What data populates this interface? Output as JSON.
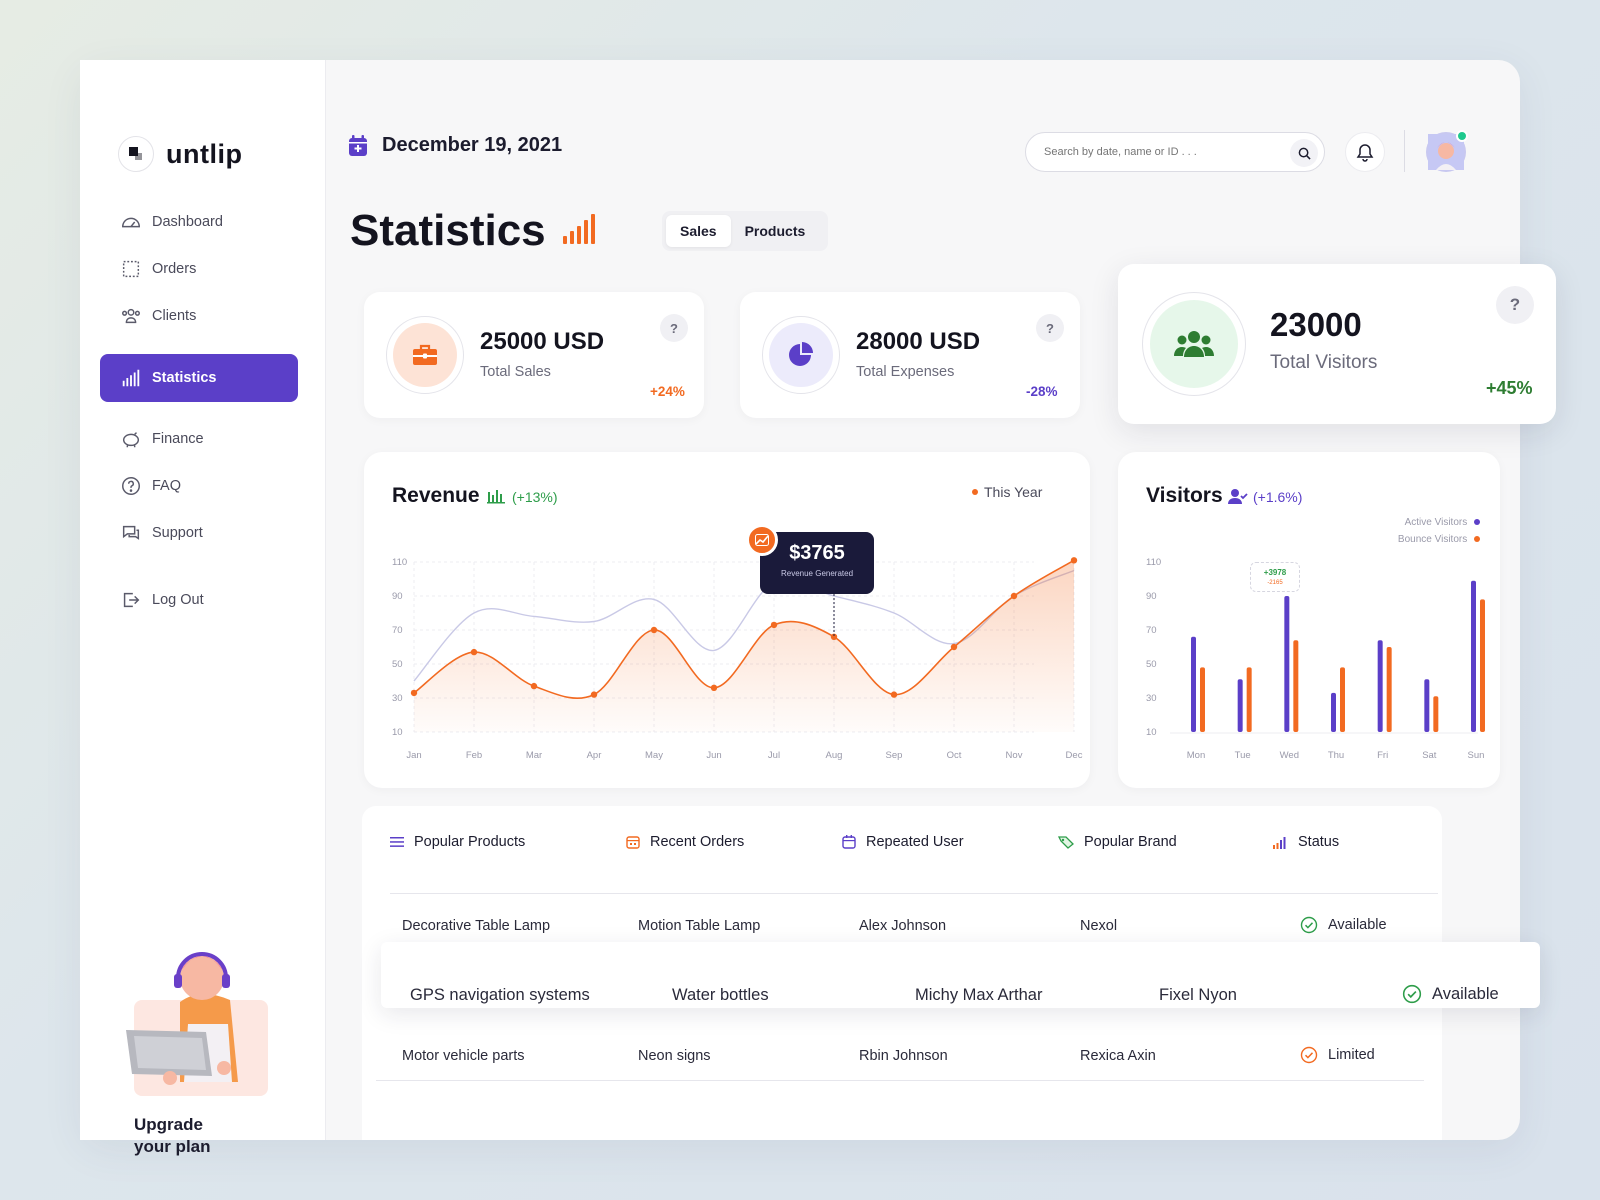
{
  "app": {
    "name": "untlip"
  },
  "sidebar": {
    "items": [
      {
        "label": "Dashboard"
      },
      {
        "label": "Orders"
      },
      {
        "label": "Clients"
      },
      {
        "label": "Statistics"
      },
      {
        "label": "Finance"
      },
      {
        "label": "FAQ"
      },
      {
        "label": "Support"
      },
      {
        "label": "Log Out"
      }
    ],
    "upgrade": "Upgrade\nyour plan"
  },
  "header": {
    "date": "December 19, 2021",
    "search_placeholder": "Search by date, name or ID . . ."
  },
  "page": {
    "title": "Statistics",
    "tabs": [
      {
        "label": "Sales"
      },
      {
        "label": "Products"
      }
    ]
  },
  "stats": [
    {
      "value": "25000 USD",
      "label": "Total Sales",
      "change": "+24%",
      "help": "?"
    },
    {
      "value": "28000 USD",
      "label": "Total Expenses",
      "change": "-28%",
      "help": "?"
    },
    {
      "value": "23000",
      "label": "Total Visitors",
      "change": "+45%",
      "help": "?"
    }
  ],
  "revenue": {
    "title": "Revenue",
    "change": "(+13%)",
    "legend": "This Year",
    "tooltip_value": "$3765",
    "tooltip_label": "Revenue Generated"
  },
  "visitors": {
    "title": "Visitors",
    "change": "(+1.6%)",
    "legend_active": "Active Visitors",
    "legend_bounce": "Bounce Visitors",
    "badge_top": "+3978",
    "badge_bottom": "-2165"
  },
  "chart_data": [
    {
      "type": "area",
      "title": "Revenue",
      "categories": [
        "Jan",
        "Feb",
        "Mar",
        "Apr",
        "May",
        "Jun",
        "Jul",
        "Aug",
        "Sep",
        "Oct",
        "Nov",
        "Dec"
      ],
      "ylim": [
        10,
        110
      ],
      "yticks": [
        110,
        90,
        70,
        50,
        30,
        10
      ],
      "series": [
        {
          "name": "This Year",
          "values": [
            33,
            57,
            37,
            32,
            70,
            36,
            73,
            66,
            32,
            60,
            90,
            111
          ],
          "color": "#f26a21"
        },
        {
          "values": [
            40,
            80,
            78,
            75,
            88,
            58,
            98,
            90,
            80,
            62,
            90,
            105
          ],
          "color": "#c9c9e6"
        }
      ],
      "annotation": {
        "label": "$3765",
        "sub": "Revenue Generated",
        "category": "Aug"
      }
    },
    {
      "type": "bar",
      "title": "Visitors",
      "categories": [
        "Mon",
        "Tue",
        "Wed",
        "Thu",
        "Fri",
        "Sat",
        "Sun"
      ],
      "ylim": [
        10,
        110
      ],
      "yticks": [
        110,
        90,
        70,
        50,
        30,
        10
      ],
      "series": [
        {
          "name": "Active Visitors",
          "values": [
            66,
            41,
            90,
            33,
            64,
            41,
            99
          ],
          "color": "#5b3fc8"
        },
        {
          "name": "Bounce Visitors",
          "values": [
            48,
            48,
            64,
            48,
            60,
            31,
            88
          ],
          "color": "#f26a21"
        }
      ]
    }
  ],
  "table": {
    "headers": [
      {
        "label": "Popular Products"
      },
      {
        "label": "Recent Orders"
      },
      {
        "label": "Repeated User"
      },
      {
        "label": "Popular Brand"
      },
      {
        "label": "Status"
      }
    ],
    "rows": [
      {
        "cells": [
          "Decorative Table Lamp",
          "Motion Table Lamp",
          "Alex Johnson",
          "Nexol"
        ],
        "status": "Available"
      },
      {
        "cells": [
          "GPS navigation systems",
          "Water bottles",
          "Michy Max Arthar",
          "Fixel Nyon"
        ],
        "status": "Available"
      },
      {
        "cells": [
          "Motor vehicle parts",
          "Neon signs",
          "Rbin Johnson",
          "Rexica Axin"
        ],
        "status": "Limited"
      }
    ]
  },
  "colors": {
    "accent": "#5b3fc8",
    "orange": "#f26a21",
    "green": "#2e7d32"
  }
}
